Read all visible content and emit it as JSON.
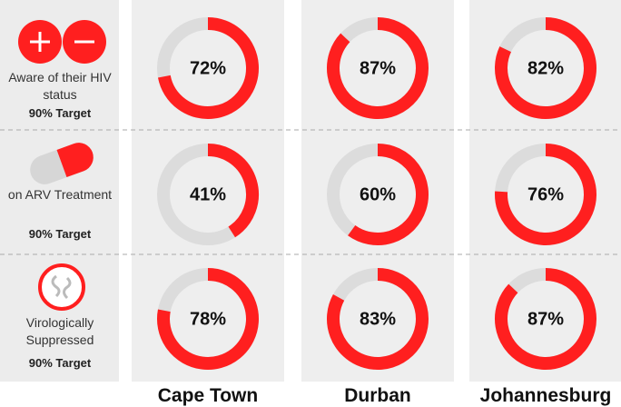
{
  "chart_data": {
    "type": "donut",
    "categories": [
      "Cape Town",
      "Durban",
      "Johannesburg"
    ],
    "series": [
      {
        "name": "Aware of their HIV status",
        "target": "90% Target",
        "values": [
          72,
          87,
          82
        ],
        "value_labels": [
          "72%",
          "87%",
          "82%"
        ]
      },
      {
        "name": "on ARV Treatment",
        "target": "90% Target",
        "values": [
          41,
          60,
          76
        ],
        "value_labels": [
          "41%",
          "60%",
          "76%"
        ]
      },
      {
        "name": "Virologically Suppressed",
        "target": "90% Target",
        "values": [
          78,
          83,
          87
        ],
        "value_labels": [
          "78%",
          "83%",
          "87%"
        ]
      }
    ],
    "ylim": [
      0,
      100
    ],
    "color": "#ff1f1f",
    "track_color": "#dcdcdc"
  }
}
